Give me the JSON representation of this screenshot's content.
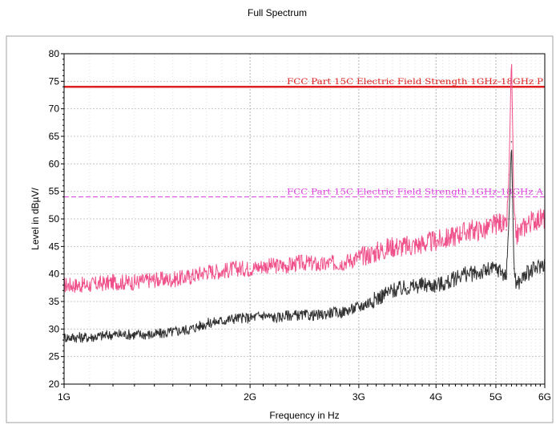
{
  "chart_data": {
    "type": "line",
    "title": "Full Spectrum",
    "xlabel": "Frequency in Hz",
    "ylabel": "Level in dBµV/",
    "x_scale": "log",
    "xlim": [
      1000000000,
      6000000000
    ],
    "ylim": [
      20,
      80
    ],
    "x_ticks": [
      {
        "value": 1000000000,
        "label": "1G"
      },
      {
        "value": 2000000000,
        "label": "2G"
      },
      {
        "value": 3000000000,
        "label": "3G"
      },
      {
        "value": 4000000000,
        "label": "4G"
      },
      {
        "value": 5000000000,
        "label": "5G"
      },
      {
        "value": 6000000000,
        "label": "6G"
      }
    ],
    "y_ticks": [
      20,
      25,
      30,
      35,
      40,
      45,
      50,
      55,
      60,
      65,
      70,
      75,
      80
    ],
    "grid": true,
    "limit_lines": [
      {
        "label": "FCC Part 15C Electric Field Strength 1GHz-18GHz P",
        "value": 74,
        "color": "#e02020",
        "style": "solid"
      },
      {
        "label": "FCC Part 15C Electric Field Strength 1GHz-18GHz A",
        "value": 54,
        "color": "#e040e0",
        "style": "dashed"
      }
    ],
    "series": [
      {
        "color": "#f0508a",
        "x": [
          1000000000,
          1100000000,
          1200000000,
          1300000000,
          1400000000,
          1500000000,
          1600000000,
          1700000000,
          1800000000,
          1900000000,
          2000000000,
          2100000000,
          2200000000,
          2300000000,
          2400000000,
          2500000000,
          2600000000,
          2700000000,
          2800000000,
          2900000000,
          3000000000,
          3200000000,
          3400000000,
          3600000000,
          3800000000,
          4000000000,
          4200000000,
          4400000000,
          4600000000,
          4800000000,
          5000000000,
          5100000000,
          5200000000,
          5250000000,
          5300000000,
          5350000000,
          5400000000,
          5600000000,
          5800000000,
          6000000000
        ],
        "values": [
          38,
          38,
          38.5,
          38.5,
          39,
          39,
          39.5,
          40.5,
          40.5,
          41,
          41,
          41.5,
          41.5,
          41.5,
          42,
          42,
          41.5,
          42,
          42,
          42.5,
          43,
          44,
          45,
          45,
          45.5,
          46,
          46.5,
          47.5,
          48,
          48,
          49,
          49.5,
          48,
          58,
          80,
          50,
          47,
          49,
          50,
          50
        ],
        "spread": [
          1.5,
          1.5,
          1.5,
          1.5,
          1.5,
          1.5,
          1.5,
          1.5,
          1.5,
          1.5,
          1.5,
          1.5,
          1.5,
          1.5,
          1.5,
          1.5,
          1.5,
          1.5,
          1.5,
          1.5,
          1.8,
          2,
          2,
          2,
          2,
          2,
          2,
          2,
          2,
          2,
          2,
          2,
          2,
          0,
          0,
          1.5,
          2,
          2,
          2,
          2
        ]
      },
      {
        "color": "#303030",
        "x": [
          1000000000,
          1100000000,
          1200000000,
          1300000000,
          1400000000,
          1500000000,
          1600000000,
          1700000000,
          1800000000,
          1900000000,
          2000000000,
          2100000000,
          2200000000,
          2300000000,
          2400000000,
          2500000000,
          2600000000,
          2700000000,
          2800000000,
          2900000000,
          3000000000,
          3200000000,
          3400000000,
          3600000000,
          3800000000,
          4000000000,
          4200000000,
          4400000000,
          4600000000,
          4800000000,
          5000000000,
          5100000000,
          5200000000,
          5250000000,
          5300000000,
          5350000000,
          5400000000,
          5600000000,
          5800000000,
          6000000000
        ],
        "values": [
          28.5,
          28.5,
          29,
          29,
          29,
          29.5,
          30,
          31,
          31.5,
          32,
          32,
          32.5,
          32,
          32.5,
          32.5,
          32.5,
          32.5,
          33,
          33,
          33.5,
          34,
          35.5,
          37,
          37.5,
          38,
          38,
          38.5,
          40,
          40,
          40.5,
          41,
          40.5,
          39.5,
          50,
          64,
          41,
          38,
          40,
          41,
          42
        ],
        "spread": [
          1,
          1,
          1,
          1,
          1,
          1,
          1,
          1,
          1,
          1,
          1,
          1,
          1,
          1,
          1,
          1,
          1,
          1,
          1,
          1,
          1.2,
          1.5,
          1.5,
          1.5,
          1.5,
          1.5,
          1.5,
          1.5,
          1.5,
          1.5,
          1.5,
          1.5,
          1.5,
          0,
          0,
          1.5,
          1.5,
          1.5,
          1.5,
          1.5
        ]
      }
    ]
  }
}
